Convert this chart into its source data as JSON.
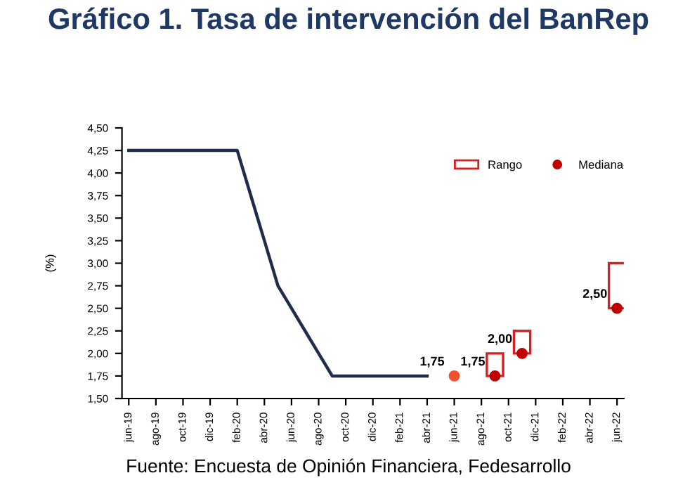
{
  "chart_data": {
    "type": "line",
    "title": "Gráfico 1. Tasa de intervención del BanRep",
    "ylabel": "(%)",
    "categories": [
      "jun-19",
      null,
      "ago-19",
      null,
      "oct-19",
      null,
      "dic-19",
      null,
      "feb-20",
      null,
      "abr-20",
      null,
      "jun-20",
      null,
      "ago-20",
      null,
      "oct-20",
      null,
      "dic-20",
      null,
      "feb-21",
      null,
      "abr-21",
      null,
      "jun-21",
      null,
      "ago-21",
      null,
      "oct-21",
      null,
      "dic-21",
      null,
      "feb-22",
      null,
      "abr-22",
      null,
      "jun-22"
    ],
    "series": [
      {
        "color": "#1f2d4a",
        "values": [
          4.25,
          4.25,
          4.25,
          4.25,
          4.25,
          4.25,
          4.25,
          4.25,
          4.25,
          3.75,
          3.25,
          2.75,
          2.5,
          2.25,
          2.0,
          1.75,
          1.75,
          1.75,
          1.75,
          1.75,
          1.75,
          1.75,
          1.75,
          null,
          null,
          null,
          null,
          null,
          null,
          null,
          null,
          null,
          null,
          null,
          null,
          null,
          null
        ]
      },
      {
        "type": "bar",
        "name": "Rango",
        "color": "#d62020",
        "base": [
          null,
          null,
          null,
          null,
          null,
          null,
          null,
          null,
          null,
          null,
          null,
          null,
          null,
          null,
          null,
          null,
          null,
          null,
          null,
          null,
          null,
          null,
          null,
          null,
          null,
          null,
          null,
          1.75,
          null,
          2.0,
          null,
          null,
          null,
          null,
          null,
          null,
          2.5
        ],
        "values": [
          null,
          null,
          null,
          null,
          null,
          null,
          null,
          null,
          null,
          null,
          null,
          null,
          null,
          null,
          null,
          null,
          null,
          null,
          null,
          null,
          null,
          null,
          null,
          null,
          null,
          null,
          null,
          0.25,
          null,
          0.25,
          null,
          null,
          null,
          null,
          null,
          null,
          0.5
        ]
      },
      {
        "type": "scatter",
        "name": "Mediana",
        "color": "#c00000",
        "marker": "circle",
        "colors": [
          null,
          null,
          null,
          null,
          null,
          null,
          null,
          null,
          null,
          null,
          null,
          null,
          null,
          null,
          null,
          null,
          null,
          null,
          null,
          null,
          null,
          null,
          null,
          null,
          "#f0502a",
          null,
          null,
          "#c00000",
          null,
          "#c00000",
          null,
          null,
          null,
          null,
          null,
          null,
          "#c00000"
        ],
        "values": [
          null,
          null,
          null,
          null,
          null,
          null,
          null,
          null,
          null,
          null,
          null,
          null,
          null,
          null,
          null,
          null,
          null,
          null,
          null,
          null,
          null,
          null,
          null,
          null,
          1.75,
          null,
          null,
          1.75,
          null,
          2.0,
          null,
          null,
          null,
          null,
          null,
          null,
          2.5
        ],
        "value_labels": [
          null,
          null,
          null,
          null,
          null,
          null,
          null,
          null,
          null,
          null,
          null,
          null,
          null,
          null,
          null,
          null,
          null,
          null,
          null,
          null,
          null,
          null,
          null,
          null,
          "1,75",
          null,
          null,
          "1,75",
          null,
          "2,00",
          null,
          null,
          null,
          null,
          null,
          null,
          "2,50"
        ]
      }
    ],
    "ylim": [
      1.5,
      4.5
    ],
    "yticks": [
      {
        "value": 1.5,
        "label": "1,50"
      },
      {
        "value": 1.75,
        "label": "1,75"
      },
      {
        "value": 2.0,
        "label": "2,00"
      },
      {
        "value": 2.25,
        "label": "2,25"
      },
      {
        "value": 2.5,
        "label": "2,50"
      },
      {
        "value": 2.75,
        "label": "2,75"
      },
      {
        "value": 3.0,
        "label": "3,00"
      },
      {
        "value": 3.25,
        "label": "3,25"
      },
      {
        "value": 3.5,
        "label": "3,50"
      },
      {
        "value": 3.75,
        "label": "3,75"
      },
      {
        "value": 4.0,
        "label": "4,00"
      },
      {
        "value": 4.25,
        "label": "4,25"
      },
      {
        "value": 4.5,
        "label": "4,50"
      }
    ],
    "grid": false,
    "legend": "top right",
    "annotations": [
      "Fuente: Encuesta de Opinión Financiera, Fedesarrollo"
    ]
  }
}
